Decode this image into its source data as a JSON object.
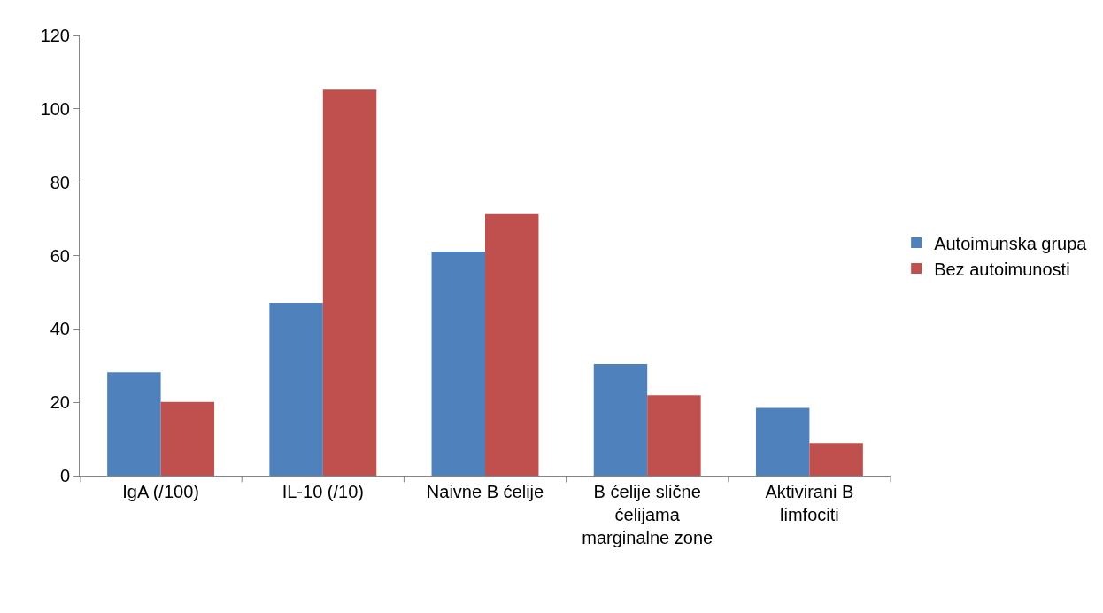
{
  "chart_data": {
    "type": "bar",
    "categories": [
      "IgA (/100)",
      "IL-10 (/10)",
      "Naivne B ćelije",
      "B ćelije slične ćelijama marginalne zone",
      "Aktivirani B limfociti"
    ],
    "series": [
      {
        "name": "Autoimunska grupa",
        "color": "#4f81bd",
        "values": [
          28.2,
          47.1,
          61.1,
          30.4,
          18.5
        ]
      },
      {
        "name": "Bez autoimunosti",
        "color": "#c0504d",
        "values": [
          20.1,
          105.2,
          71.3,
          21.9,
          8.9
        ]
      }
    ],
    "ylim": [
      0,
      120
    ],
    "yticks": [
      0,
      20,
      40,
      60,
      80,
      100,
      120
    ],
    "grid": false,
    "legend": "right"
  }
}
